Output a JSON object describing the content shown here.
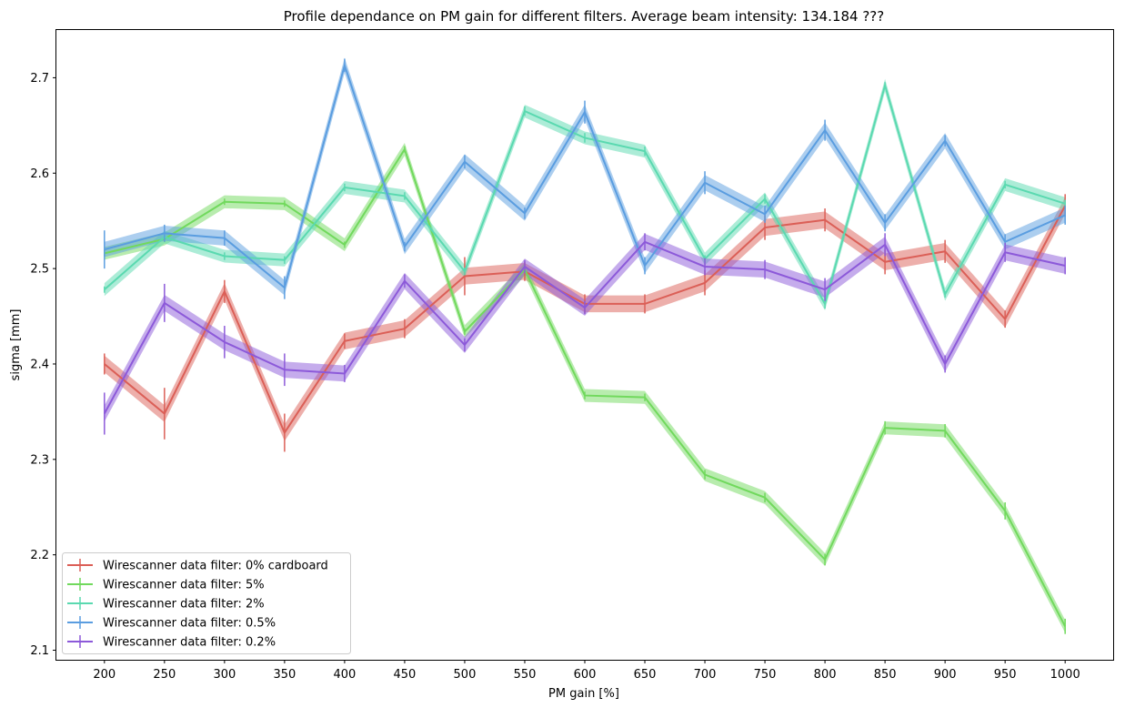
{
  "chart_data": {
    "type": "line",
    "title": "Profile dependance on PM gain for different filters. Average beam intensity: 134.184 ???",
    "xlabel": "PM gain [%]",
    "ylabel": "sigma [mm]",
    "x": [
      200,
      250,
      300,
      350,
      400,
      450,
      500,
      550,
      600,
      650,
      700,
      750,
      800,
      850,
      900,
      950,
      1000
    ],
    "x_ticks": [
      "200",
      "250",
      "300",
      "350",
      "400",
      "450",
      "500",
      "550",
      "600",
      "650",
      "700",
      "750",
      "800",
      "850",
      "900",
      "950",
      "1000"
    ],
    "y_ticks": [
      "2.1",
      "2.2",
      "2.3",
      "2.4",
      "2.5",
      "2.6",
      "2.7"
    ],
    "xlim": [
      160,
      1040
    ],
    "ylim": [
      2.09,
      2.75
    ],
    "grid": false,
    "legend_position": "lower-left",
    "series": [
      {
        "name": "Wirescanner data filter: 0% cardboard",
        "color": "#db5f57",
        "values": [
          2.4,
          2.348,
          2.476,
          2.328,
          2.424,
          2.437,
          2.492,
          2.497,
          2.463,
          2.463,
          2.485,
          2.543,
          2.551,
          2.507,
          2.518,
          2.447,
          2.566
        ],
        "errors": [
          0.011,
          0.027,
          0.012,
          0.02,
          0.008,
          0.01,
          0.02,
          0.01,
          0.01,
          0.01,
          0.013,
          0.013,
          0.012,
          0.013,
          0.012,
          0.009,
          0.012
        ]
      },
      {
        "name": "Wirescanner data filter: 5%",
        "color": "#71d95d",
        "values": [
          2.516,
          2.531,
          2.57,
          2.568,
          2.525,
          2.625,
          2.434,
          2.499,
          2.367,
          2.365,
          2.284,
          2.26,
          2.195,
          2.333,
          2.33,
          2.246,
          2.125
        ],
        "errors": [
          0.002,
          0.002,
          0.003,
          0.003,
          0.002,
          0.002,
          0.002,
          0.003,
          0.004,
          0.004,
          0.005,
          0.005,
          0.006,
          0.007,
          0.007,
          0.009,
          0.008
        ]
      },
      {
        "name": "Wirescanner data filter: 2%",
        "color": "#5ad9b0",
        "values": [
          2.478,
          2.533,
          2.513,
          2.509,
          2.585,
          2.576,
          2.497,
          2.665,
          2.637,
          2.623,
          2.51,
          2.573,
          2.463,
          2.692,
          2.473,
          2.588,
          2.568
        ],
        "errors": [
          0.003,
          0.004,
          0.004,
          0.004,
          0.004,
          0.004,
          0.004,
          0.005,
          0.005,
          0.005,
          0.004,
          0.005,
          0.005,
          0.003,
          0.003,
          0.004,
          0.004
        ]
      },
      {
        "name": "Wirescanner data filter: 0.5%",
        "color": "#5a9de0",
        "values": [
          2.52,
          2.537,
          2.532,
          2.48,
          2.713,
          2.523,
          2.612,
          2.558,
          2.664,
          2.503,
          2.59,
          2.557,
          2.645,
          2.548,
          2.634,
          2.528,
          2.556
        ],
        "errors": [
          0.02,
          0.009,
          0.008,
          0.012,
          0.007,
          0.005,
          0.007,
          0.006,
          0.012,
          0.009,
          0.012,
          0.009,
          0.011,
          0.009,
          0.006,
          0.008,
          0.01
        ]
      },
      {
        "name": "Wirescanner data filter: 0.2%",
        "color": "#8c59d9",
        "values": [
          2.348,
          2.464,
          2.423,
          2.394,
          2.39,
          2.487,
          2.42,
          2.502,
          2.459,
          2.528,
          2.502,
          2.499,
          2.478,
          2.525,
          2.4,
          2.517,
          2.503
        ],
        "errors": [
          0.022,
          0.02,
          0.017,
          0.017,
          0.009,
          0.007,
          0.007,
          0.007,
          0.007,
          0.009,
          0.009,
          0.01,
          0.012,
          0.012,
          0.009,
          0.01,
          0.009
        ]
      }
    ]
  }
}
